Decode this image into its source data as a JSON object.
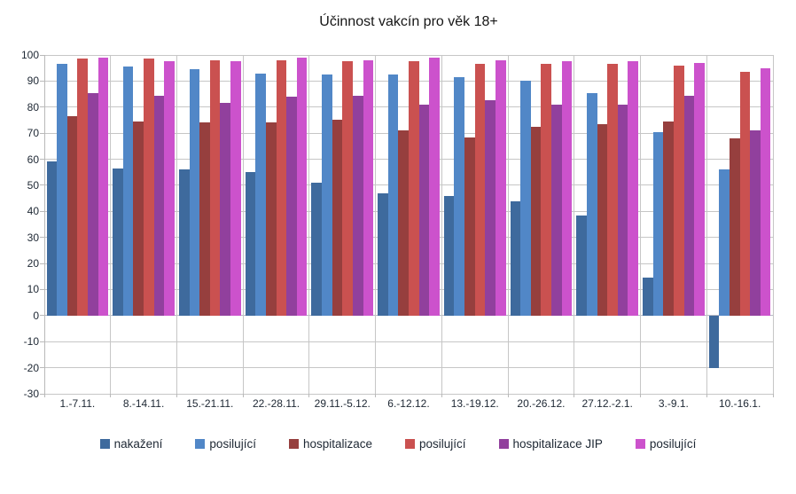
{
  "chart_data": {
    "type": "bar",
    "title": "Účinnost vakcín pro věk 18+",
    "categories": [
      "1.-7.11.",
      "8.-14.11.",
      "15.-21.11.",
      "22.-28.11.",
      "29.11.-5.12.",
      "6.-12.12.",
      "13.-19.12.",
      "20.-26.12.",
      "27.12.-2.1.",
      "3.-9.1.",
      "10.-16.1."
    ],
    "series": [
      {
        "name": "nakažení",
        "color": "#3e6a9d",
        "values": [
          59,
          56.5,
          56,
          55,
          51,
          47,
          46,
          44,
          38.5,
          14.5,
          -20
        ]
      },
      {
        "name": "posilující",
        "color": "#5187c7",
        "values": [
          96.5,
          95.5,
          94.5,
          93,
          92.5,
          92.5,
          91.5,
          90,
          85.5,
          70.5,
          56
        ]
      },
      {
        "name": "hospitalizace",
        "color": "#963f3e",
        "values": [
          76.5,
          74.5,
          74,
          74,
          75,
          71,
          68.5,
          72.5,
          73.5,
          74.5,
          68
        ]
      },
      {
        "name": "posilující",
        "color": "#ca5150",
        "values": [
          98.5,
          98.5,
          98,
          98,
          97.5,
          97.5,
          96.5,
          96.5,
          96.5,
          96,
          93.5
        ]
      },
      {
        "name": "hospitalizace JIP",
        "color": "#91409d",
        "values": [
          85.5,
          84.5,
          81.5,
          84,
          84.5,
          81,
          82.5,
          81,
          81,
          84.5,
          71
        ]
      },
      {
        "name": "posilující",
        "color": "#cc52cc",
        "values": [
          99,
          97.5,
          97.5,
          99,
          98,
          99,
          98,
          97.5,
          97.5,
          97,
          95
        ]
      }
    ],
    "ylim": [
      -30,
      100
    ],
    "ytick_step": 10,
    "grid": true,
    "legend_position": "bottom"
  },
  "colors": {
    "grid": "#c6c6c6",
    "axis": "#b9b9b9",
    "zero_line": "#b4b8c3",
    "text": "#1d2733"
  }
}
